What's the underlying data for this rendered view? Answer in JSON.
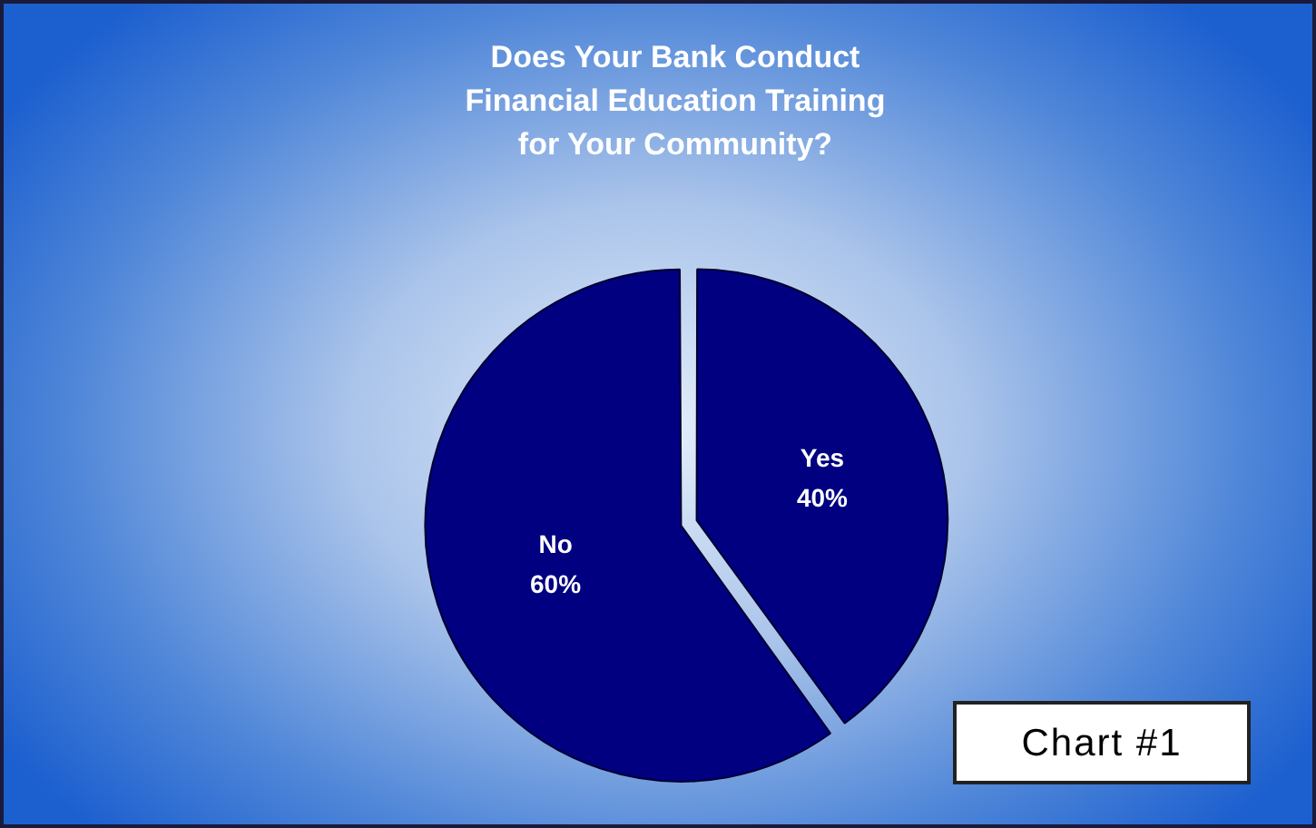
{
  "chart_data": {
    "type": "pie",
    "title": "Does Your Bank Conduct\nFinancial Education Training\nfor Your Community?",
    "categories": [
      "Yes",
      "No"
    ],
    "values": [
      40,
      60
    ],
    "value_labels": [
      "40%",
      "60%"
    ],
    "colors": [
      "#000080",
      "#000080"
    ],
    "legend": false,
    "annotations": [
      "Chart #1"
    ]
  }
}
